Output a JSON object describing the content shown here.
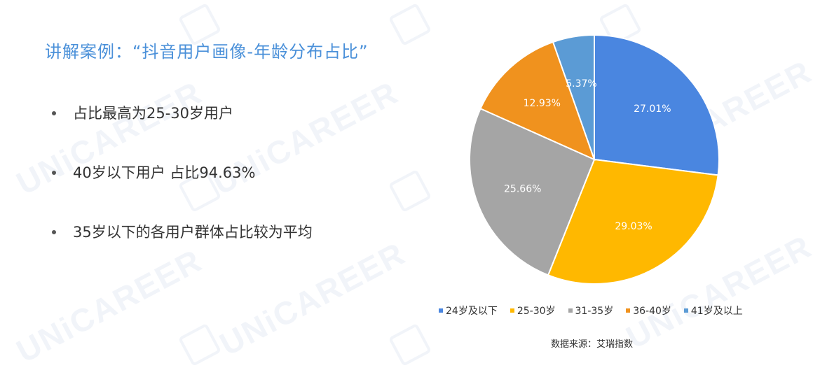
{
  "slide": {
    "title": "讲解案例：“抖音用户画像-年龄分布占比”",
    "bullets": [
      "占比最高为25-30岁用户",
      "40岁以下用户 占比94.63%",
      "35岁以下的各用户群体占比较为平均"
    ],
    "source": "数据来源：艾瑞指数",
    "watermark": "UNiCAREER"
  },
  "chart_data": {
    "type": "pie",
    "categories": [
      "24岁及以下",
      "25-30岁",
      "31-35岁",
      "36-40岁",
      "41岁及以上"
    ],
    "values": [
      27.01,
      29.03,
      25.66,
      12.93,
      5.37
    ],
    "labels": [
      "27.01%",
      "29.03%",
      "25.66%",
      "12.93%",
      "5.37%"
    ],
    "colors": [
      "#4a86e0",
      "#ffb800",
      "#a5a5a5",
      "#f0921e",
      "#5b9bd5"
    ],
    "legend_position": "bottom",
    "start": "top, clockwise"
  }
}
